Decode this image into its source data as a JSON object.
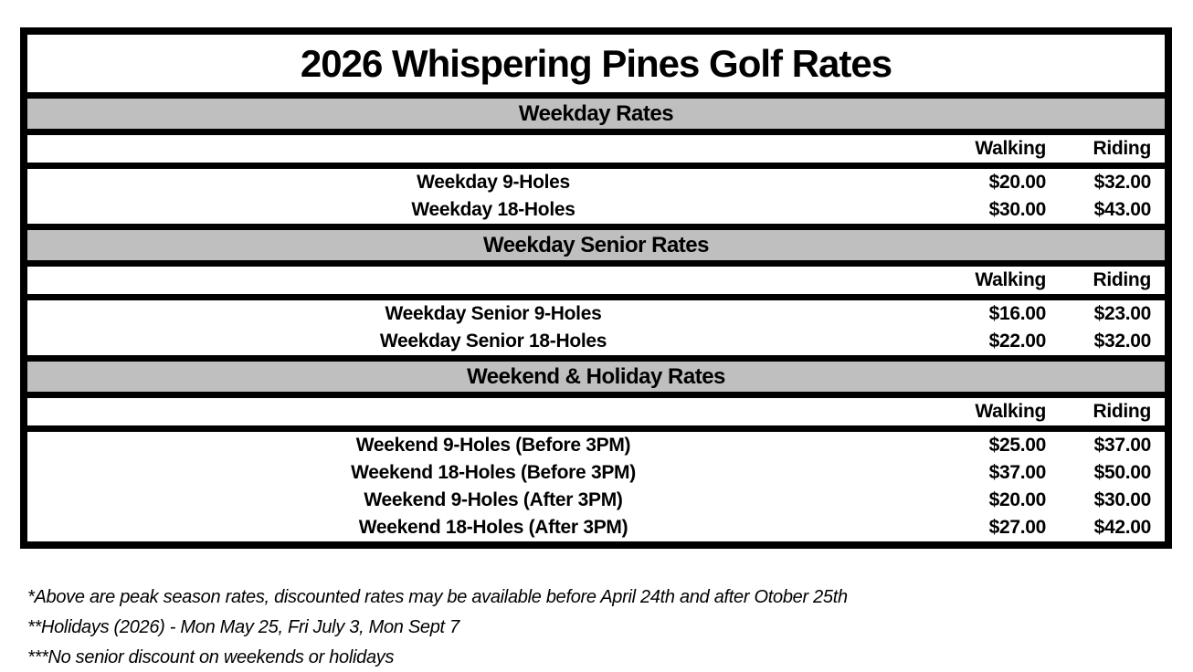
{
  "title": "2026 Whispering Pines Golf Rates",
  "columns": {
    "walking": "Walking",
    "riding": "Riding"
  },
  "sections": [
    {
      "header": "Weekday Rates",
      "rows": [
        {
          "label": "Weekday 9-Holes",
          "walking": "$20.00",
          "riding": "$32.00"
        },
        {
          "label": "Weekday 18-Holes",
          "walking": "$30.00",
          "riding": "$43.00"
        }
      ]
    },
    {
      "header": "Weekday Senior Rates",
      "rows": [
        {
          "label": "Weekday Senior 9-Holes",
          "walking": "$16.00",
          "riding": "$23.00"
        },
        {
          "label": "Weekday Senior 18-Holes",
          "walking": "$22.00",
          "riding": "$32.00"
        }
      ]
    },
    {
      "header": "Weekend & Holiday Rates",
      "rows": [
        {
          "label": "Weekend 9-Holes (Before 3PM)",
          "walking": "$25.00",
          "riding": "$37.00"
        },
        {
          "label": "Weekend 18-Holes  (Before 3PM)",
          "walking": "$37.00",
          "riding": "$50.00"
        },
        {
          "label": "Weekend 9-Holes (After 3PM)",
          "walking": "$20.00",
          "riding": "$30.00"
        },
        {
          "label": "Weekend 18-Holes (After 3PM)",
          "walking": "$27.00",
          "riding": "$42.00"
        }
      ]
    }
  ],
  "footnotes": [
    "*Above are peak season rates, discounted rates may be available before April 24th and after Otober 25th",
    "**Holidays (2026) - Mon May 25, Fri July 3, Mon Sept 7",
    "***No senior discount on weekends or holidays"
  ],
  "colors": {
    "section_header_bg": "#BFBFBF",
    "border": "#000000",
    "background": "#FFFFFF"
  }
}
